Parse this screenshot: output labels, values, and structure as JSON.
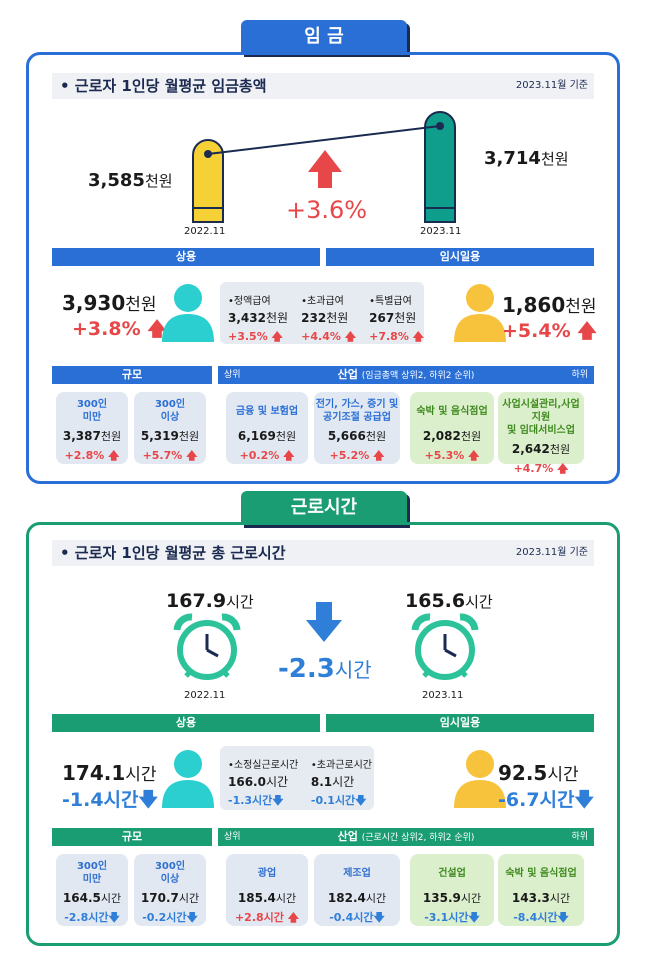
{
  "wage": {
    "tab": "임 금",
    "title": "• 근로자 1인당 월평균 임금총액",
    "basis": "2023.11월 기준",
    "prev": {
      "value": "3,585",
      "unit": "천원",
      "period": "2022.11"
    },
    "curr": {
      "value": "3,714",
      "unit": "천원",
      "period": "2023.11"
    },
    "change": "+3.6%",
    "regular": {
      "label": "상용",
      "value": "3,930",
      "unit": "천원",
      "change": "+3.8%"
    },
    "temp": {
      "label": "임시일용",
      "value": "1,860",
      "unit": "천원",
      "change": "+5.4%"
    },
    "components": [
      {
        "name": "•정액급여",
        "value": "3,432",
        "unit": "천원",
        "change": "+3.5%"
      },
      {
        "name": "•초과급여",
        "value": "232",
        "unit": "천원",
        "change": "+4.4%"
      },
      {
        "name": "•특별급여",
        "value": "267",
        "unit": "천원",
        "change": "+7.8%"
      }
    ],
    "size_label": "규모",
    "industry_label": "산업",
    "industry_note": "(임금총액 상위2, 하위2 순위)",
    "top": "상위",
    "bottom": "하위",
    "size": [
      {
        "name": "300인\n미만",
        "value": "3,387",
        "unit": "천원",
        "change": "+2.8%"
      },
      {
        "name": "300인\n이상",
        "value": "5,319",
        "unit": "천원",
        "change": "+5.7%"
      }
    ],
    "industry": [
      {
        "name": "금융 및 보험업",
        "value": "6,169",
        "unit": "천원",
        "change": "+0.2%"
      },
      {
        "name": "전기, 가스, 증기 및\n공기조절 공급업",
        "value": "5,666",
        "unit": "천원",
        "change": "+5.2%"
      },
      {
        "name": "숙박 및 음식점업",
        "value": "2,082",
        "unit": "천원",
        "change": "+5.3%"
      },
      {
        "name": "사업시설관리,사업지원\n및 임대서비스업",
        "value": "2,642",
        "unit": "천원",
        "change": "+4.7%"
      }
    ]
  },
  "hours": {
    "tab": "근로시간",
    "title": "• 근로자 1인당 월평균 총 근로시간",
    "basis": "2023.11월 기준",
    "prev": {
      "value": "167.9",
      "unit": "시간",
      "period": "2022.11"
    },
    "curr": {
      "value": "165.6",
      "unit": "시간",
      "period": "2023.11"
    },
    "change_value": "-2.3",
    "change_unit": "시간",
    "regular": {
      "label": "상용",
      "value": "174.1",
      "unit": "시간",
      "change": "-1.4시간"
    },
    "temp": {
      "label": "임시일용",
      "value": "92.5",
      "unit": "시간",
      "change": "-6.7시간"
    },
    "components": [
      {
        "name": "•소정실근로시간",
        "value": "166.0",
        "unit": "시간",
        "change": "-1.3시간"
      },
      {
        "name": "•초과근로시간",
        "value": "8.1",
        "unit": "시간",
        "change": "-0.1시간"
      }
    ],
    "size_label": "규모",
    "industry_label": "산업",
    "industry_note": "(근로시간 상위2, 하위2 순위)",
    "top": "상위",
    "bottom": "하위",
    "size": [
      {
        "name": "300인\n미만",
        "value": "164.5",
        "unit": "시간",
        "change": "-2.8시간"
      },
      {
        "name": "300인\n이상",
        "value": "170.7",
        "unit": "시간",
        "change": "-0.2시간"
      }
    ],
    "industry": [
      {
        "name": "광업",
        "value": "185.4",
        "unit": "시간",
        "change": "+2.8시간"
      },
      {
        "name": "제조업",
        "value": "182.4",
        "unit": "시간",
        "change": "-0.4시간"
      },
      {
        "name": "건설업",
        "value": "135.9",
        "unit": "시간",
        "change": "-3.1시간"
      },
      {
        "name": "숙박 및 음식점업",
        "value": "143.3",
        "unit": "시간",
        "change": "-8.4시간"
      }
    ]
  },
  "colors": {
    "blue": "#2a6fd6",
    "green": "#1a9d72",
    "red": "#e8474a",
    "yellow": "#f6d135",
    "teal": "#0f9e8c",
    "person": "#2ccfcf",
    "temp_person": "#f7c23c"
  }
}
